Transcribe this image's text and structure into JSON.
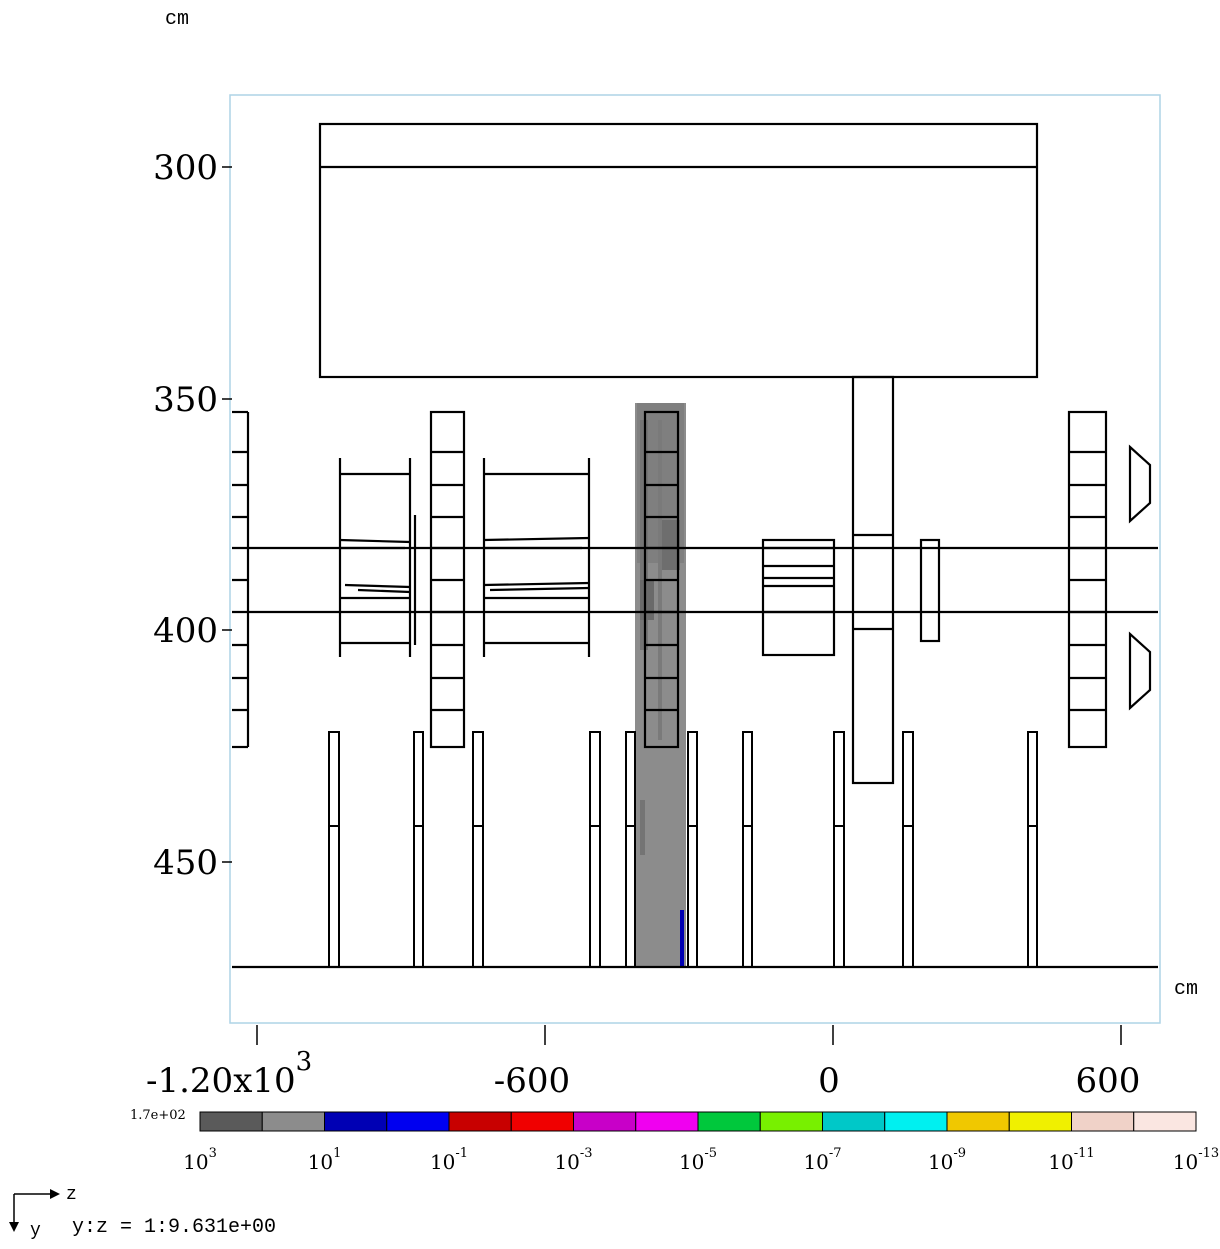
{
  "units": {
    "y_unit": "cm",
    "z_unit": "cm"
  },
  "y_axis": {
    "ticks": [
      {
        "value": 300,
        "label": "300"
      },
      {
        "value": 350,
        "label": "350"
      },
      {
        "value": 400,
        "label": "400"
      },
      {
        "value": 450,
        "label": "450"
      }
    ]
  },
  "z_axis": {
    "ticks": [
      {
        "value": -1200,
        "label": "-1.20x10",
        "exp": "3"
      },
      {
        "value": -600,
        "label": "-600",
        "exp": ""
      },
      {
        "value": 0,
        "label": "0",
        "exp": ""
      },
      {
        "value": 600,
        "label": "600",
        "exp": ""
      }
    ]
  },
  "colorbar": {
    "max_label": "1.7e+02",
    "colors": [
      "#5a5a5a",
      "#8c8c8c",
      "#0000b4",
      "#0000f0",
      "#c80000",
      "#f00000",
      "#c800c8",
      "#f000f0",
      "#00c83c",
      "#78f000",
      "#00c8c8",
      "#00f0f0",
      "#f0c800",
      "#f0f000",
      "#f0d2c8",
      "#fae6e1"
    ],
    "labels": [
      {
        "base": "10",
        "exp": "3"
      },
      {
        "base": "10",
        "exp": "1"
      },
      {
        "base": "10",
        "exp": "-1"
      },
      {
        "base": "10",
        "exp": "-3"
      },
      {
        "base": "10",
        "exp": "-5"
      },
      {
        "base": "10",
        "exp": "-7"
      },
      {
        "base": "10",
        "exp": "-9"
      },
      {
        "base": "10",
        "exp": "-11"
      },
      {
        "base": "10",
        "exp": "-13"
      }
    ]
  },
  "orientation": {
    "horizontal": "z",
    "vertical": "y",
    "ratio_text": "y:z = 1:9.631e+00"
  }
}
